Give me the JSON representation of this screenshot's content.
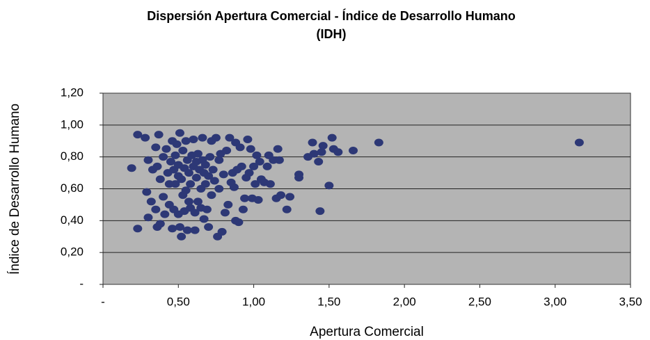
{
  "chart_data": {
    "type": "scatter",
    "title": [
      "Dispersión Apertura Comercial - Índice de Desarrollo Humano",
      "(IDH)"
    ],
    "x_label": "Apertura Comercial",
    "y_label": "Índice de Desarrollo Humano",
    "color": "#2d3876",
    "plot_background": "#b4b4b4",
    "grid": true,
    "xlim": [
      0,
      3.5
    ],
    "ylim": [
      0,
      1.2
    ],
    "xticks": [
      {
        "value": 0,
        "label": "-"
      },
      {
        "value": 0.5,
        "label": "0,50"
      },
      {
        "value": 1,
        "label": "1,00"
      },
      {
        "value": 1.5,
        "label": "1,50"
      },
      {
        "value": 2,
        "label": "2,00"
      },
      {
        "value": 2.5,
        "label": "2,50"
      },
      {
        "value": 3,
        "label": "3,00"
      },
      {
        "value": 3.5,
        "label": "3,50"
      }
    ],
    "yticks": [
      {
        "value": 0,
        "label": "-"
      },
      {
        "value": 0.2,
        "label": "0,20"
      },
      {
        "value": 0.4,
        "label": "0,40"
      },
      {
        "value": 0.6,
        "label": "0,60"
      },
      {
        "value": 0.8,
        "label": "0,80"
      },
      {
        "value": 1,
        "label": "1,00"
      },
      {
        "value": 1.2,
        "label": "1,20"
      }
    ],
    "x": [
      0.19,
      0.23,
      0.23,
      0.28,
      0.29,
      0.3,
      0.3,
      0.32,
      0.33,
      0.35,
      0.35,
      0.36,
      0.36,
      0.37,
      0.38,
      0.38,
      0.4,
      0.4,
      0.41,
      0.42,
      0.43,
      0.44,
      0.44,
      0.45,
      0.46,
      0.46,
      0.47,
      0.47,
      0.48,
      0.48,
      0.49,
      0.5,
      0.5,
      0.5,
      0.51,
      0.51,
      0.52,
      0.52,
      0.53,
      0.53,
      0.54,
      0.54,
      0.55,
      0.55,
      0.56,
      0.56,
      0.57,
      0.57,
      0.58,
      0.58,
      0.59,
      0.6,
      0.6,
      0.61,
      0.61,
      0.62,
      0.62,
      0.63,
      0.63,
      0.64,
      0.65,
      0.65,
      0.66,
      0.66,
      0.67,
      0.67,
      0.68,
      0.68,
      0.69,
      0.7,
      0.7,
      0.71,
      0.72,
      0.72,
      0.73,
      0.74,
      0.75,
      0.76,
      0.77,
      0.77,
      0.78,
      0.79,
      0.8,
      0.81,
      0.82,
      0.83,
      0.84,
      0.85,
      0.86,
      0.87,
      0.88,
      0.88,
      0.89,
      0.9,
      0.91,
      0.92,
      0.93,
      0.94,
      0.95,
      0.96,
      0.97,
      0.98,
      0.99,
      1.0,
      1.01,
      1.02,
      1.03,
      1.04,
      1.05,
      1.07,
      1.09,
      1.1,
      1.11,
      1.13,
      1.15,
      1.16,
      1.17,
      1.18,
      1.22,
      1.24,
      1.3,
      1.3,
      1.36,
      1.39,
      1.4,
      1.43,
      1.44,
      1.45,
      1.46,
      1.5,
      1.52,
      1.53,
      1.56,
      1.66,
      1.83,
      3.16
    ],
    "values": [
      0.73,
      0.94,
      0.35,
      0.92,
      0.58,
      0.42,
      0.78,
      0.52,
      0.72,
      0.47,
      0.86,
      0.36,
      0.74,
      0.94,
      0.66,
      0.38,
      0.8,
      0.55,
      0.44,
      0.85,
      0.7,
      0.63,
      0.5,
      0.77,
      0.35,
      0.9,
      0.72,
      0.47,
      0.63,
      0.81,
      0.88,
      0.68,
      0.44,
      0.75,
      0.95,
      0.36,
      0.3,
      0.66,
      0.84,
      0.56,
      0.73,
      0.46,
      0.59,
      0.9,
      0.34,
      0.78,
      0.7,
      0.52,
      0.63,
      0.48,
      0.81,
      0.74,
      0.91,
      0.45,
      0.34,
      0.77,
      0.67,
      0.82,
      0.52,
      0.72,
      0.48,
      0.6,
      0.78,
      0.92,
      0.7,
      0.41,
      0.63,
      0.75,
      0.47,
      0.36,
      0.68,
      0.8,
      0.9,
      0.56,
      0.72,
      0.65,
      0.92,
      0.3,
      0.78,
      0.6,
      0.82,
      0.33,
      0.69,
      0.45,
      0.84,
      0.5,
      0.92,
      0.64,
      0.7,
      0.61,
      0.89,
      0.4,
      0.72,
      0.39,
      0.86,
      0.74,
      0.47,
      0.54,
      0.67,
      0.91,
      0.7,
      0.85,
      0.54,
      0.74,
      0.63,
      0.81,
      0.53,
      0.77,
      0.66,
      0.64,
      0.74,
      0.81,
      0.63,
      0.78,
      0.54,
      0.85,
      0.78,
      0.56,
      0.47,
      0.55,
      0.69,
      0.67,
      0.8,
      0.89,
      0.82,
      0.77,
      0.46,
      0.83,
      0.87,
      0.62,
      0.92,
      0.85,
      0.83,
      0.84,
      0.89,
      0.89
    ]
  }
}
